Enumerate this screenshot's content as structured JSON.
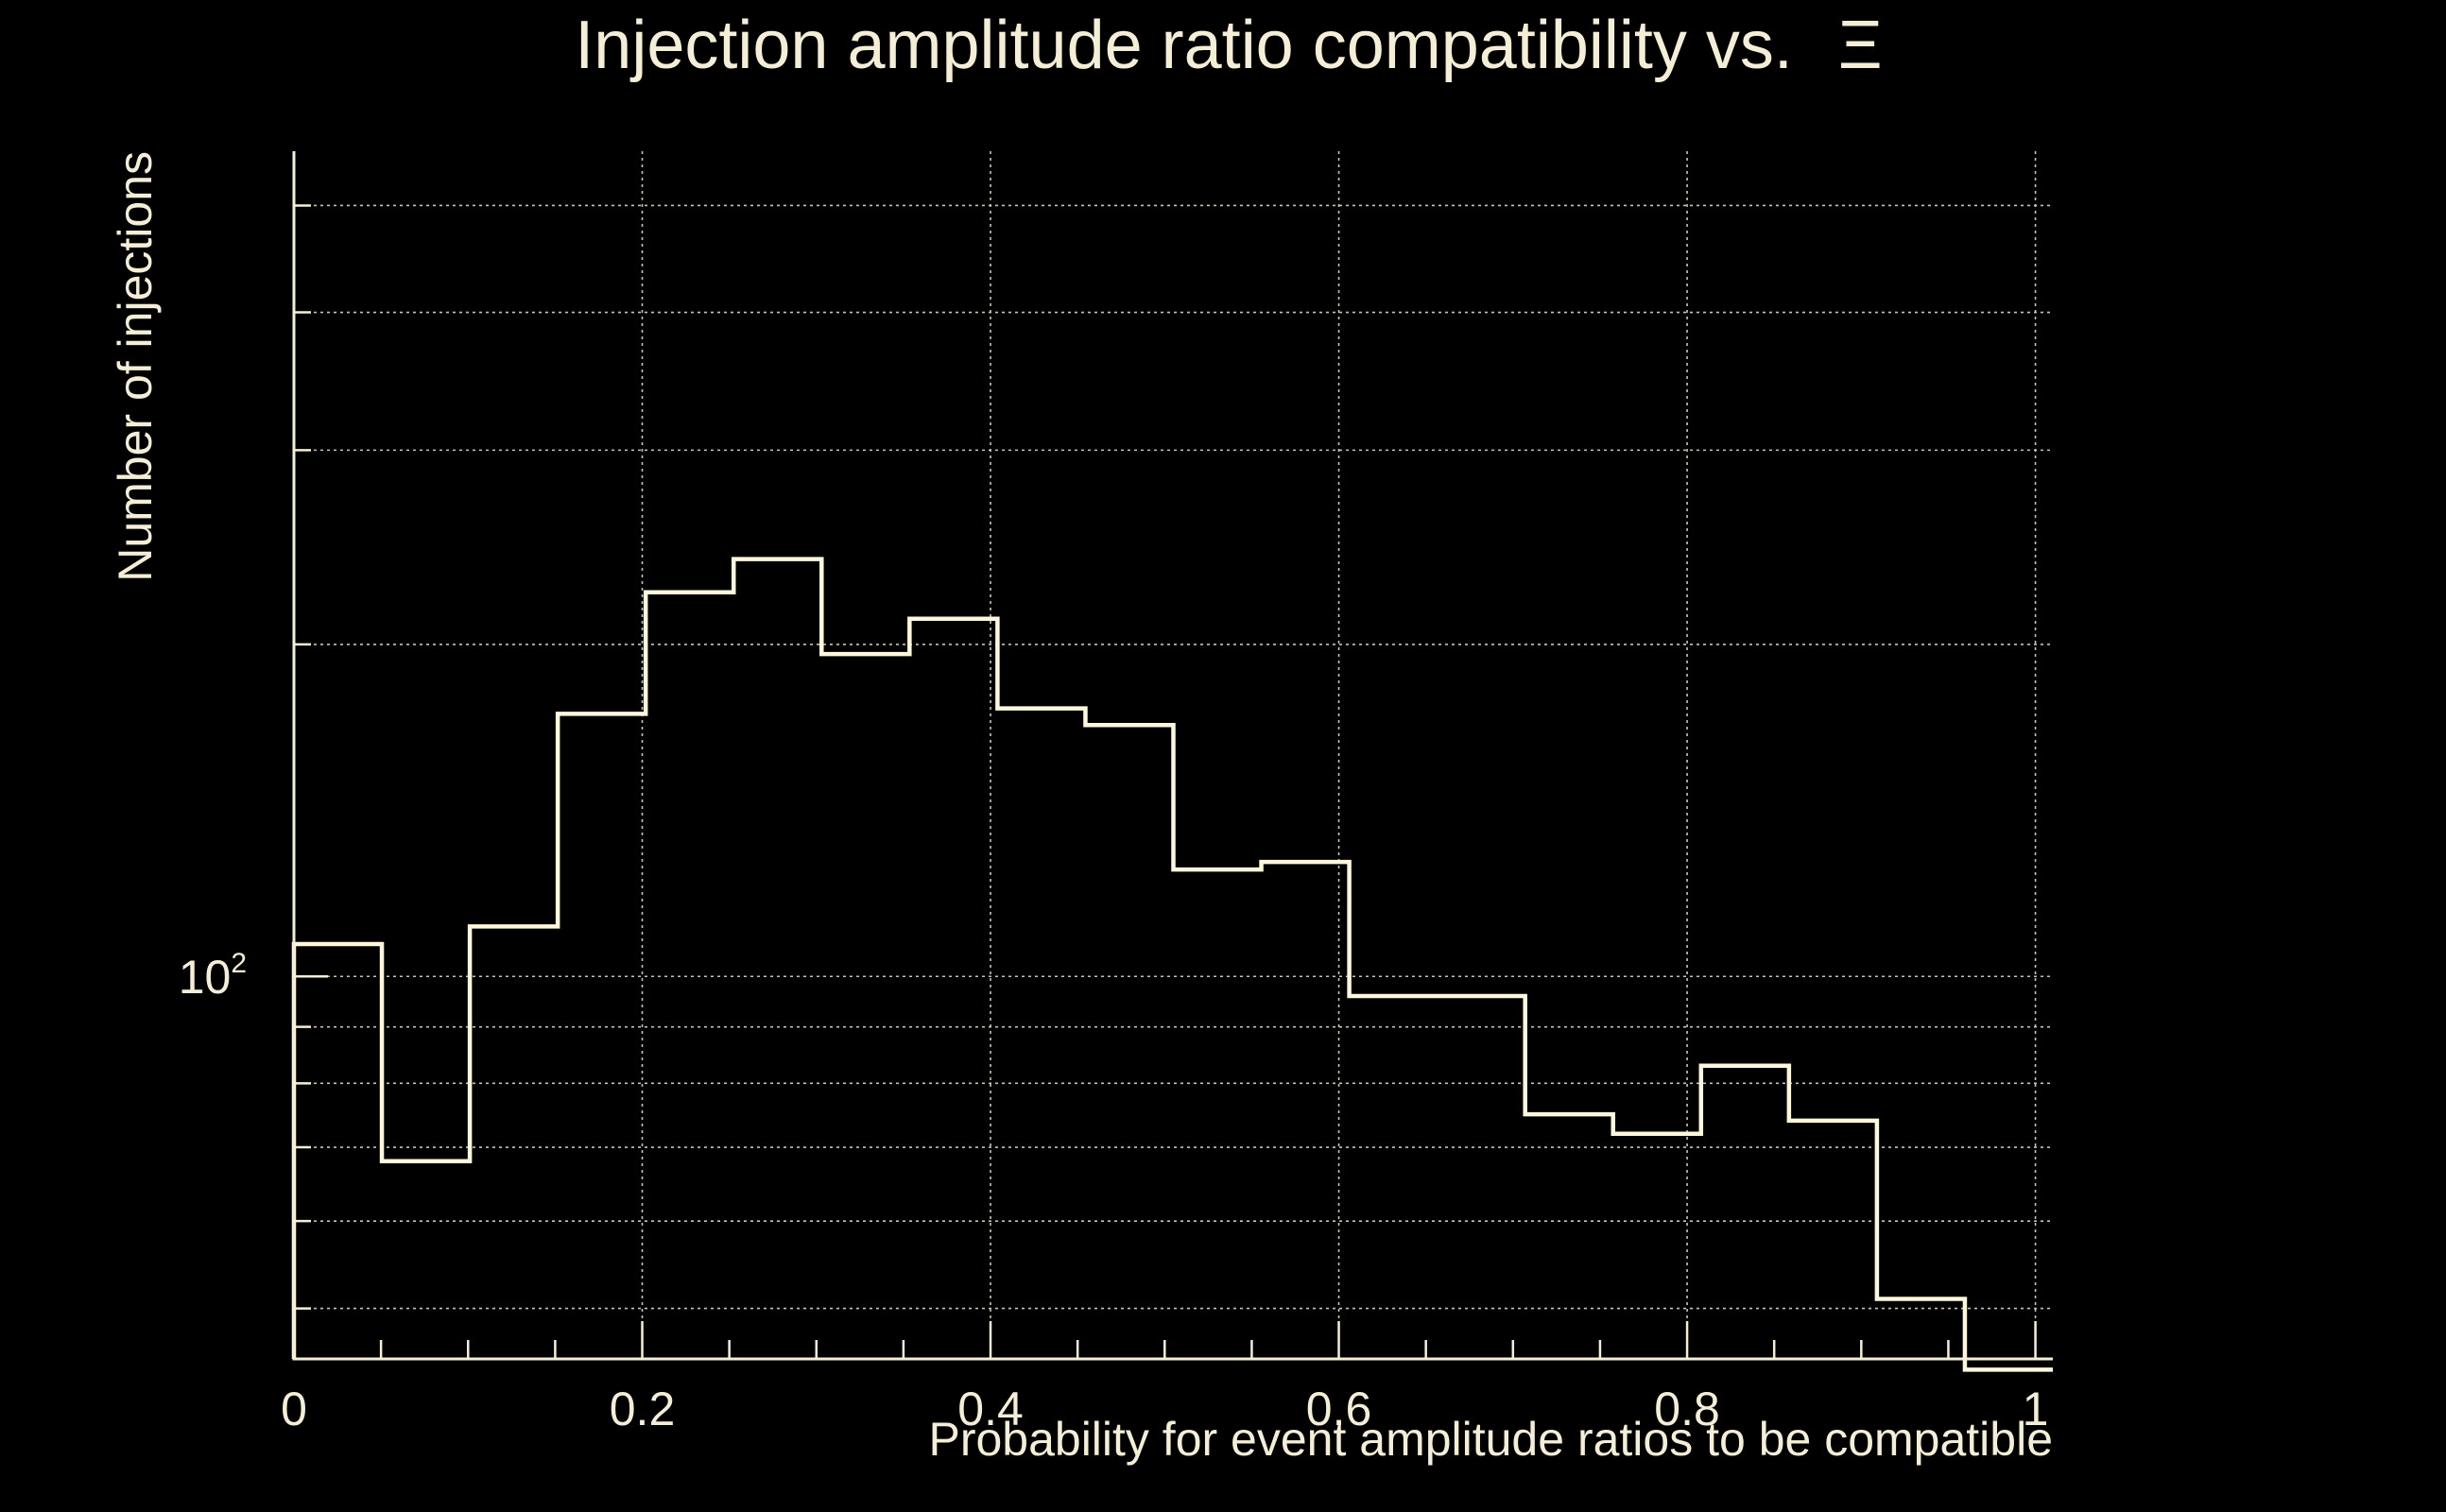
{
  "chart_data": {
    "type": "histogram",
    "title": "Injection amplitude ratio compatibility vs.",
    "title_symbol": "Ξ",
    "xlabel": "Probability for event amplitude ratios to be compatible",
    "ylabel": "Number of injections",
    "x_ticks": [
      "0",
      "0.2",
      "0.4",
      "0.6",
      "0.8",
      "1"
    ],
    "y_tick_base": "10",
    "y_tick_exponent": "2",
    "xlim": [
      0,
      1.01
    ],
    "ylim": [
      45,
      560
    ],
    "yscale": "log",
    "grid": true,
    "bin_edges": [
      0,
      0.0505,
      0.101,
      0.1515,
      0.202,
      0.2525,
      0.303,
      0.3535,
      0.404,
      0.4545,
      0.505,
      0.5555,
      0.606,
      0.6565,
      0.707,
      0.7575,
      0.808,
      0.8585,
      0.909,
      0.9595,
      1.01
    ],
    "values": [
      107,
      68,
      111,
      173,
      223,
      239,
      196,
      211,
      175,
      169,
      125,
      127,
      96,
      96,
      75,
      72,
      83,
      74,
      51,
      44
    ],
    "colors": {
      "background": "#000000",
      "foreground": "#f5eed6",
      "line": "#fff7dc"
    }
  }
}
